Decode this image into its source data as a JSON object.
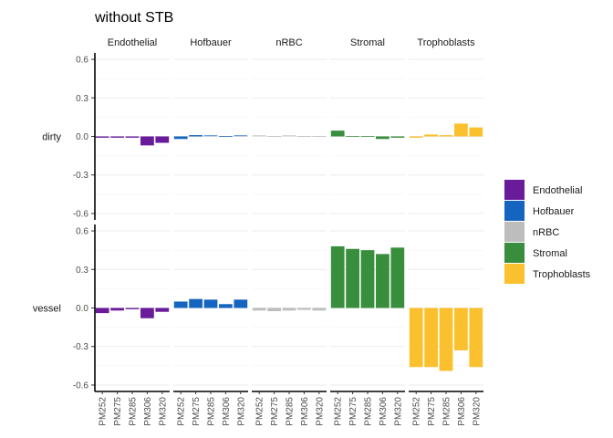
{
  "chart_data": {
    "type": "bar",
    "title": "without STB",
    "xlabel": "",
    "ylabel": "",
    "facet_columns": [
      "Endothelial",
      "Hofbauer",
      "nRBC",
      "Stromal",
      "Trophoblasts"
    ],
    "facet_rows": [
      "dirty",
      "vessel"
    ],
    "categories": [
      "PM252",
      "PM275",
      "PM285",
      "PM306",
      "PM320"
    ],
    "ylim": [
      -0.65,
      0.65
    ],
    "yticks": [
      -0.6,
      -0.3,
      0.0,
      0.3,
      0.6
    ],
    "ytick_labels": [
      "-0.6",
      "-0.3",
      "0.0",
      "0.3",
      "0.6"
    ],
    "grid": true,
    "legend_position": "right",
    "legend": [
      {
        "name": "Endothelial",
        "color": "#6A1B9A"
      },
      {
        "name": "Hofbauer",
        "color": "#1565C0"
      },
      {
        "name": "nRBC",
        "color": "#BDBDBD"
      },
      {
        "name": "Stromal",
        "color": "#388E3C"
      },
      {
        "name": "Trophoblasts",
        "color": "#FBC02D"
      }
    ],
    "series": [
      {
        "row": "dirty",
        "col": "Endothelial",
        "values": [
          -0.01,
          -0.01,
          -0.01,
          -0.07,
          -0.05
        ]
      },
      {
        "row": "dirty",
        "col": "Hofbauer",
        "values": [
          -0.02,
          0.01,
          0.005,
          0.0,
          0.005
        ]
      },
      {
        "row": "dirty",
        "col": "nRBC",
        "values": [
          0.005,
          0.0,
          0.005,
          0.0,
          0.0
        ]
      },
      {
        "row": "dirty",
        "col": "Stromal",
        "values": [
          0.045,
          0.0,
          0.0,
          -0.02,
          -0.01
        ]
      },
      {
        "row": "dirty",
        "col": "Trophoblasts",
        "values": [
          -0.01,
          0.015,
          0.01,
          0.1,
          0.07
        ]
      },
      {
        "row": "vessel",
        "col": "Endothelial",
        "values": [
          -0.04,
          -0.02,
          -0.01,
          -0.08,
          -0.03
        ]
      },
      {
        "row": "vessel",
        "col": "Hofbauer",
        "values": [
          0.05,
          0.07,
          0.065,
          0.03,
          0.065
        ]
      },
      {
        "row": "vessel",
        "col": "nRBC",
        "values": [
          -0.02,
          -0.025,
          -0.02,
          -0.015,
          -0.02
        ]
      },
      {
        "row": "vessel",
        "col": "Stromal",
        "values": [
          0.48,
          0.46,
          0.45,
          0.42,
          0.47
        ]
      },
      {
        "row": "vessel",
        "col": "Trophoblasts",
        "values": [
          -0.46,
          -0.46,
          -0.49,
          -0.33,
          -0.46
        ]
      }
    ]
  }
}
